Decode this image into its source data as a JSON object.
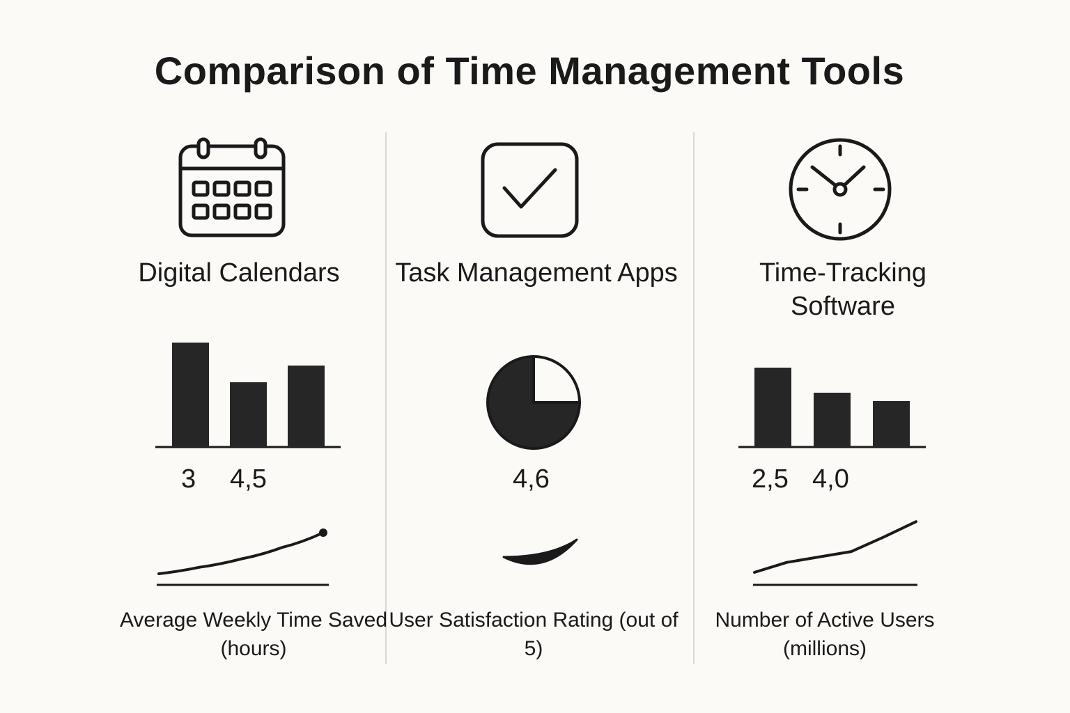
{
  "title": "Comparison of Time Management Tools",
  "columns": [
    {
      "icon": "calendar-icon",
      "title": "Digital Calendars",
      "values": [
        "3",
        "4,5"
      ],
      "caption": "Average Weekly Time Saved (hours)"
    },
    {
      "icon": "checkbox-icon",
      "title": "Task Management Apps",
      "values": [
        "4,6"
      ],
      "caption": "User Satisfaction Rating (out of 5)"
    },
    {
      "icon": "clock-icon",
      "title": "Time-Tracking Software",
      "values": [
        "2,5",
        "4,0"
      ],
      "caption": "Number of Active Users (millions)"
    }
  ],
  "chart_data": [
    {
      "type": "bar",
      "categories": [
        "",
        "",
        ""
      ],
      "values": [
        5.0,
        3.1,
        3.9
      ],
      "ylim": [
        0,
        5
      ],
      "grid": false
    },
    {
      "type": "pie",
      "values": [
        25,
        75
      ],
      "grid": false
    },
    {
      "type": "bar",
      "categories": [
        "",
        "",
        ""
      ],
      "values": [
        3.8,
        2.6,
        2.2
      ],
      "ylim": [
        0,
        5
      ],
      "grid": false
    },
    {
      "type": "line",
      "x": [
        0,
        1,
        2,
        3,
        4
      ],
      "y": [
        0,
        0.8,
        1.8,
        3.2,
        5.0
      ],
      "marker_last": true,
      "ylim": [
        0,
        5
      ]
    },
    {
      "type": "line",
      "x": [
        0,
        1,
        2,
        3,
        4,
        5
      ],
      "y": [
        0,
        1.1,
        1.7,
        2.3,
        3.9,
        5.6
      ],
      "marker_last": false,
      "ylim": [
        0,
        6
      ]
    }
  ]
}
